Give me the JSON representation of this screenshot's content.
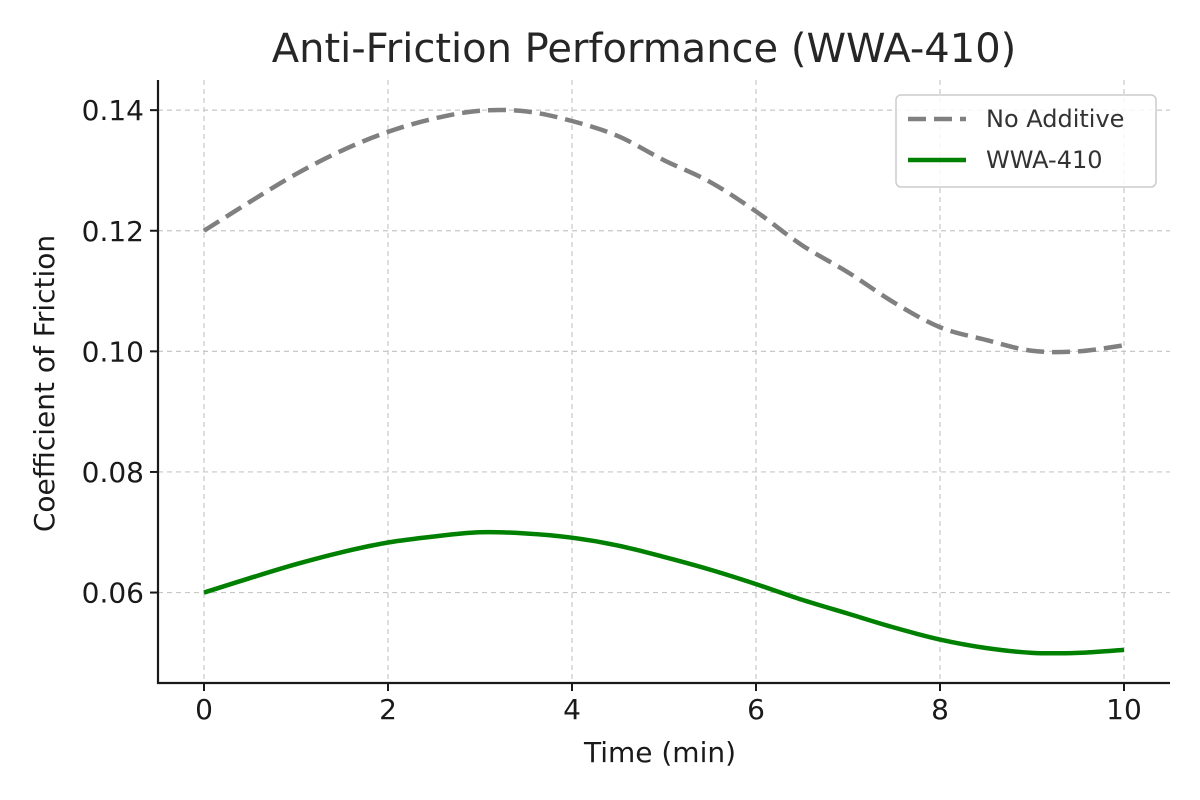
{
  "chart_data": {
    "type": "line",
    "title": "Anti-Friction Performance (WWA-410)",
    "xlabel": "Time (min)",
    "ylabel": "Coefficient of Friction",
    "xlim": [
      -0.5,
      10.5
    ],
    "ylim": [
      0.045,
      0.145
    ],
    "x_ticks": [
      0,
      2,
      4,
      6,
      8,
      10
    ],
    "x_tick_labels": [
      "0",
      "2",
      "4",
      "6",
      "8",
      "10"
    ],
    "y_ticks": [
      0.06,
      0.08,
      0.1,
      0.12,
      0.14
    ],
    "y_tick_labels": [
      "0.06",
      "0.08",
      "0.10",
      "0.12",
      "0.14"
    ],
    "grid": true,
    "legend_position": "top-right",
    "x": [
      0,
      0.5,
      1,
      1.5,
      2,
      2.5,
      3,
      3.5,
      4,
      4.5,
      5,
      5.5,
      6,
      6.5,
      7,
      7.5,
      8,
      8.5,
      9,
      9.5,
      10
    ],
    "series": [
      {
        "name": "No Additive",
        "color": "#808080",
        "style": "dashed",
        "values": [
          0.12,
          0.1248,
          0.1294,
          0.1333,
          0.1364,
          0.1386,
          0.1399,
          0.1398,
          0.1382,
          0.1357,
          0.1317,
          0.1281,
          0.1232,
          0.1176,
          0.1131,
          0.1081,
          0.104,
          0.1019,
          0.1001,
          0.1,
          0.101
        ]
      },
      {
        "name": "WWA-410",
        "color": "#008000",
        "style": "solid",
        "values": [
          0.06,
          0.0624,
          0.0647,
          0.0667,
          0.0683,
          0.0693,
          0.07,
          0.0698,
          0.0691,
          0.0678,
          0.0659,
          0.0638,
          0.0614,
          0.0588,
          0.0565,
          0.0542,
          0.0522,
          0.0508,
          0.05,
          0.05,
          0.0505
        ]
      }
    ]
  }
}
